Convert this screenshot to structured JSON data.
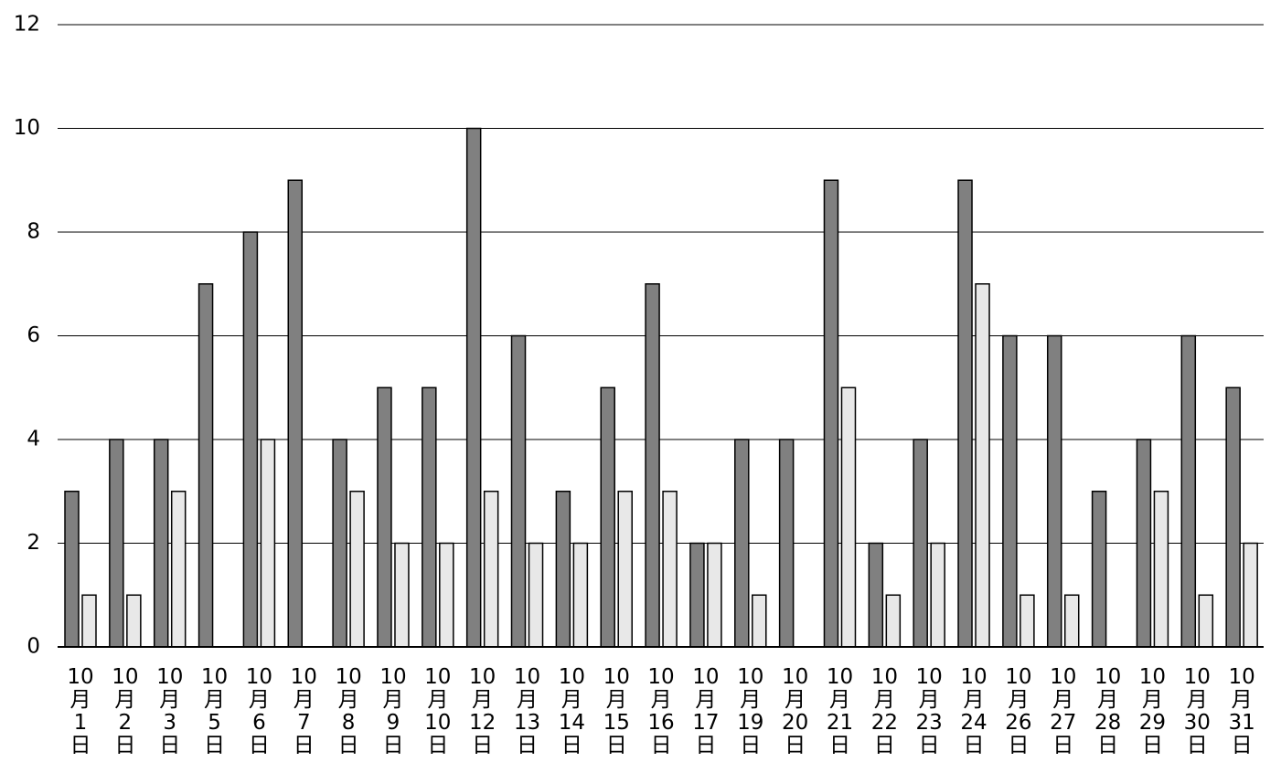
{
  "chart_data": {
    "type": "bar",
    "categories": [
      "10月1日",
      "10月2日",
      "10月3日",
      "10月5日",
      "10月6日",
      "10月7日",
      "10月8日",
      "10月9日",
      "10月10日",
      "10月12日",
      "10月13日",
      "10月14日",
      "10月15日",
      "10月16日",
      "10月17日",
      "10月19日",
      "10月20日",
      "10月21日",
      "10月22日",
      "10月23日",
      "10月24日",
      "10月26日",
      "10月27日",
      "10月28日",
      "10月29日",
      "10月30日",
      "10月31日"
    ],
    "series": [
      {
        "color": "#808080",
        "values": [
          3,
          4,
          4,
          7,
          8,
          9,
          4,
          5,
          5,
          10,
          6,
          3,
          5,
          7,
          2,
          4,
          4,
          9,
          2,
          4,
          9,
          6,
          6,
          3,
          4,
          6,
          5
        ]
      },
      {
        "color": "#e8e8e8",
        "values": [
          1,
          1,
          3,
          0,
          4,
          0,
          3,
          2,
          2,
          3,
          2,
          2,
          3,
          3,
          2,
          1,
          0,
          5,
          1,
          2,
          7,
          1,
          1,
          0,
          3,
          1,
          2
        ]
      }
    ],
    "ylim": [
      0,
      12
    ],
    "yticks": [
      0,
      2,
      4,
      6,
      8,
      10,
      12
    ],
    "grid": true
  }
}
